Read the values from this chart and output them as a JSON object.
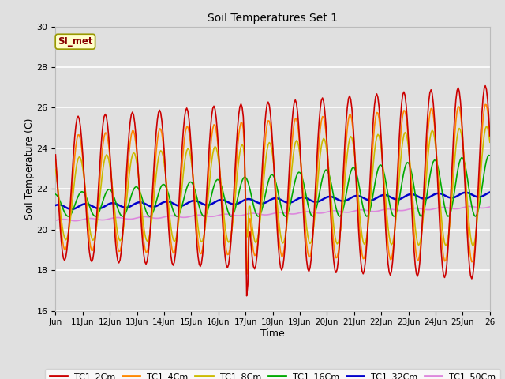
{
  "title": "Soil Temperatures Set 1",
  "xlabel": "Time",
  "ylabel": "Soil Temperature (C)",
  "ylim": [
    16,
    30
  ],
  "xlim": [
    0,
    16
  ],
  "annotation": "SI_met",
  "x_tick_labels": [
    "Jun",
    "11Jun",
    "12Jun",
    "13Jun",
    "14Jun",
    "15Jun",
    "16Jun",
    "17Jun",
    "18Jun",
    "19Jun",
    "20Jun",
    "21Jun",
    "22Jun",
    "23Jun",
    "24Jun",
    "25Jun",
    "26"
  ],
  "x_tick_positions": [
    0,
    1,
    2,
    3,
    4,
    5,
    6,
    7,
    8,
    9,
    10,
    11,
    12,
    13,
    14,
    15,
    16
  ],
  "y_tick_positions": [
    16,
    18,
    20,
    22,
    24,
    26,
    28,
    30
  ],
  "series_colors": {
    "TC1_2Cm": "#cc0000",
    "TC1_4Cm": "#ff8800",
    "TC1_8Cm": "#ccbb00",
    "TC1_16Cm": "#00aa00",
    "TC1_32Cm": "#0000cc",
    "TC1_50Cm": "#dd88dd"
  },
  "series_linewidths": {
    "TC1_2Cm": 1.2,
    "TC1_4Cm": 1.2,
    "TC1_8Cm": 1.2,
    "TC1_16Cm": 1.2,
    "TC1_32Cm": 1.8,
    "TC1_50Cm": 1.2
  },
  "background_color": "#e0e0e0",
  "plot_bg_color": "#e0e0e0",
  "grid_color": "#ffffff",
  "legend_bg": "#ffffcc",
  "legend_border": "#999900"
}
